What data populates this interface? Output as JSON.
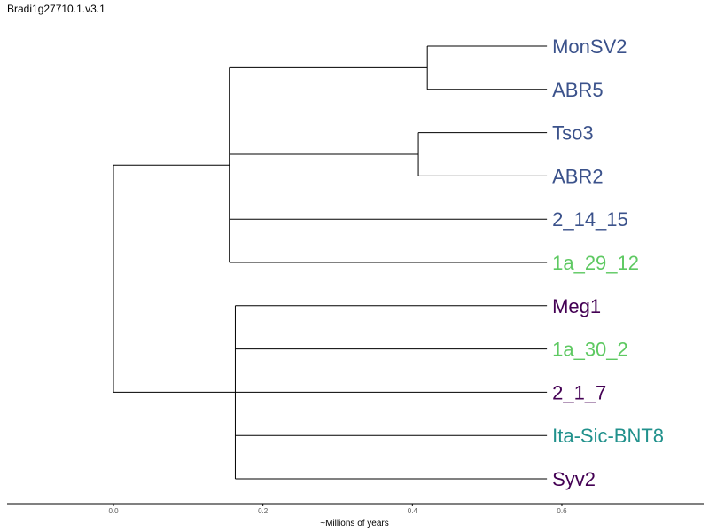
{
  "title": "Bradi1g27710.1.v3.1",
  "colors": {
    "blue": "#3b528b",
    "green": "#5ec962",
    "purple": "#440154",
    "teal": "#21918c"
  },
  "chart_data": {
    "type": "dendrogram",
    "xlabel": "~Millions of years",
    "ticks": [
      "0.0",
      "0.2",
      "0.4",
      "0.6"
    ],
    "tick_values": [
      0.0,
      0.2,
      0.4,
      0.6
    ],
    "xlim": [
      -0.14,
      0.8
    ],
    "leaves": [
      {
        "name": "MonSV2",
        "color": "blue"
      },
      {
        "name": "ABR5",
        "color": "blue"
      },
      {
        "name": "Tso3",
        "color": "blue"
      },
      {
        "name": "ABR2",
        "color": "blue"
      },
      {
        "name": "2_14_15",
        "color": "blue"
      },
      {
        "name": "1a_29_12",
        "color": "green"
      },
      {
        "name": "Meg1",
        "color": "purple"
      },
      {
        "name": "1a_30_2",
        "color": "green"
      },
      {
        "name": "2_1_7",
        "color": "purple"
      },
      {
        "name": "Ita-Sic-BNT8",
        "color": "teal"
      },
      {
        "name": "Syv2",
        "color": "purple"
      }
    ],
    "leaf_time": 0.58,
    "clades": [
      {
        "id": "root",
        "time": 0.0,
        "children": [
          "A",
          "B"
        ]
      },
      {
        "id": "A",
        "time": 0.155,
        "children": [
          "A1",
          "A2",
          4,
          5
        ]
      },
      {
        "id": "A1",
        "time": 0.42,
        "children": [
          0,
          1
        ]
      },
      {
        "id": "A2",
        "time": 0.408,
        "children": [
          2,
          3
        ]
      },
      {
        "id": "B",
        "time": 0.163,
        "children": [
          6,
          7,
          8,
          9,
          10
        ]
      }
    ]
  }
}
